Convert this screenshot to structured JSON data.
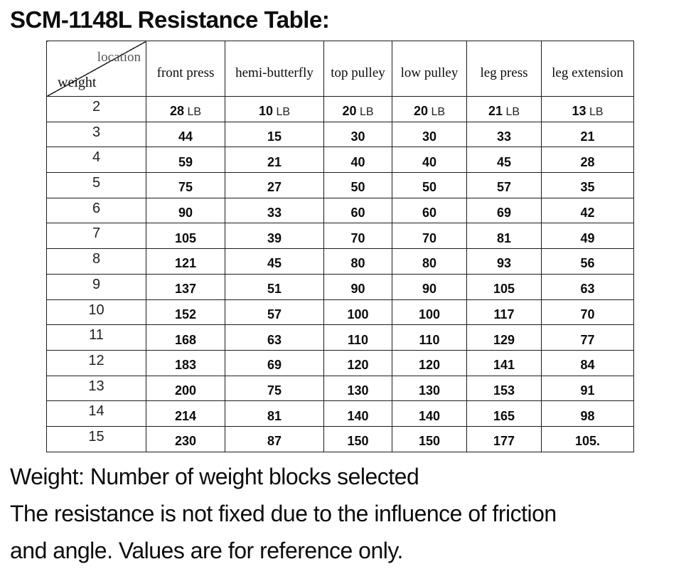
{
  "title": "SCM-1148L Resistance Table:",
  "table": {
    "corner": {
      "top_label": "location",
      "bottom_label": "weight"
    },
    "columns": [
      "front press",
      "hemi-butterfly",
      "top pulley",
      "low pulley",
      "leg press",
      "leg extension"
    ],
    "unit_first_row": "LB",
    "rows": [
      {
        "weight": "2",
        "unit": "LB",
        "values": [
          "28",
          "10",
          "20",
          "20",
          "21",
          "13"
        ]
      },
      {
        "weight": "3",
        "values": [
          "44",
          "15",
          "30",
          "30",
          "33",
          "21"
        ]
      },
      {
        "weight": "4",
        "values": [
          "59",
          "21",
          "40",
          "40",
          "45",
          "28"
        ]
      },
      {
        "weight": "5",
        "values": [
          "75",
          "27",
          "50",
          "50",
          "57",
          "35"
        ]
      },
      {
        "weight": "6",
        "values": [
          "90",
          "33",
          "60",
          "60",
          "69",
          "42"
        ]
      },
      {
        "weight": "7",
        "values": [
          "105",
          "39",
          "70",
          "70",
          "81",
          "49"
        ]
      },
      {
        "weight": "8",
        "values": [
          "121",
          "45",
          "80",
          "80",
          "93",
          "56"
        ]
      },
      {
        "weight": "9",
        "values": [
          "137",
          "51",
          "90",
          "90",
          "105",
          "63"
        ]
      },
      {
        "weight": "10",
        "values": [
          "152",
          "57",
          "100",
          "100",
          "117",
          "70"
        ]
      },
      {
        "weight": "11",
        "values": [
          "168",
          "63",
          "110",
          "110",
          "129",
          "77"
        ]
      },
      {
        "weight": "12",
        "values": [
          "183",
          "69",
          "120",
          "120",
          "141",
          "84"
        ]
      },
      {
        "weight": "13",
        "values": [
          "200",
          "75",
          "130",
          "130",
          "153",
          "91"
        ]
      },
      {
        "weight": "14",
        "values": [
          "214",
          "81",
          "140",
          "140",
          "165",
          "98"
        ]
      },
      {
        "weight": "15",
        "values": [
          "230",
          "87",
          "150",
          "150",
          "177",
          "105."
        ]
      }
    ]
  },
  "notes": [
    "Weight: Number of weight blocks selected",
    "The resistance is not fixed due to the influence of friction",
    "and angle. Values are for reference only."
  ]
}
